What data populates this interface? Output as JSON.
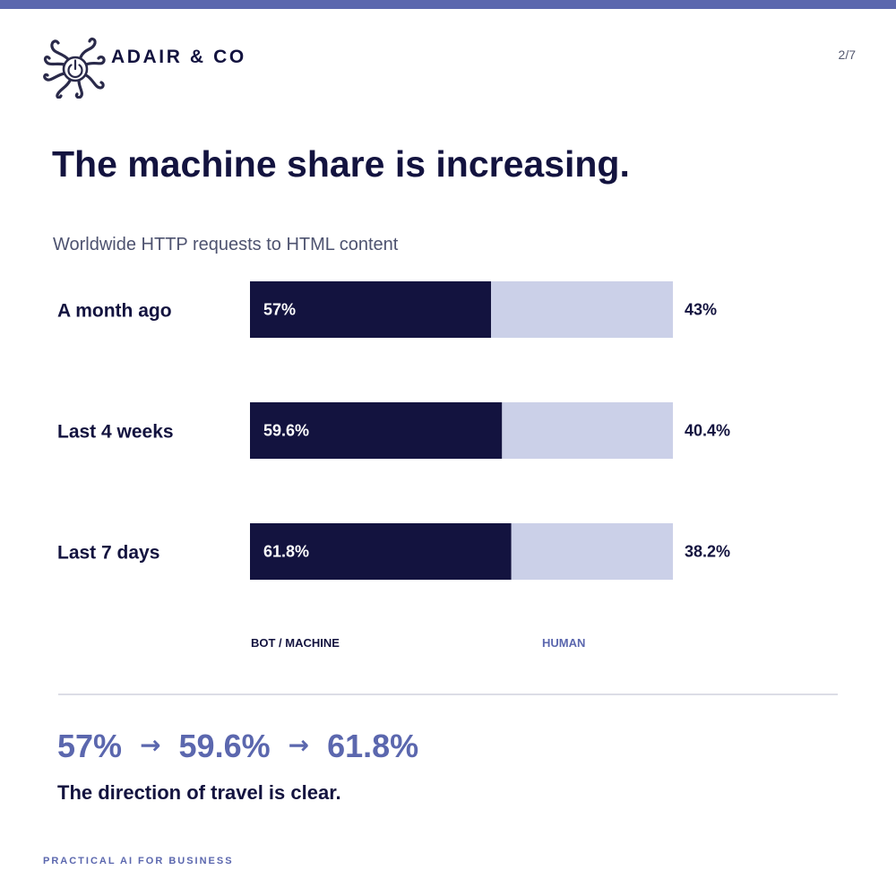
{
  "brand": {
    "name": "ADAIR & CO",
    "logo_icon": "octopus-power-logo-icon"
  },
  "page": {
    "number": "2/7"
  },
  "title": "The machine share is increasing.",
  "footer": "PRACTICAL AI FOR BUSINESS",
  "colors": {
    "accent": "#5b67ae",
    "bot": "#13133f",
    "human": "#cbd0e8",
    "text": "#13133f"
  },
  "chart_data": {
    "type": "bar",
    "stacked": true,
    "orientation": "horizontal",
    "title": "Worldwide HTTP requests to HTML content",
    "categories": [
      "A month ago",
      "Last 4 weeks",
      "Last 7 days"
    ],
    "series": [
      {
        "name": "BOT / MACHINE",
        "values": [
          57,
          59.6,
          61.8
        ],
        "labels": [
          "57%",
          "59.6%",
          "61.8%"
        ],
        "color": "#13133f"
      },
      {
        "name": "HUMAN",
        "values": [
          43,
          40.4,
          38.2
        ],
        "labels": [
          "43%",
          "40.4%",
          "38.2%"
        ],
        "color": "#cbd0e8"
      }
    ],
    "xlim": [
      0,
      100
    ],
    "legend": "bottom"
  },
  "trend": {
    "values": [
      "57%",
      "59.6%",
      "61.8%"
    ],
    "arrow": "→"
  },
  "tagline": "The direction of travel is clear."
}
